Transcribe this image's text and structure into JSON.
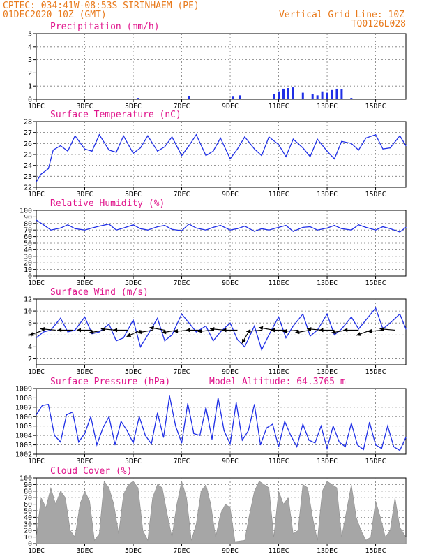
{
  "header": {
    "line1": "CPTEC:  034:41W-08:53S  SIRINHAEM (PE)",
    "line2_left": "01DEC2020 10Z (GMT)",
    "line2_right": "Vertical Grid Line: 10Z",
    "line3_right": "TQ0126L028"
  },
  "colors": {
    "header": "#e87a1c",
    "panel_title": "#e0168c",
    "series_line": "#1f2fe6",
    "cloud_fill": "#a6a6a6",
    "wind_arrow": "#000000"
  },
  "x_ticks": [
    "1DEC",
    "3DEC",
    "5DEC",
    "7DEC",
    "9DEC",
    "11DEC",
    "13DEC",
    "15DEC"
  ],
  "chart_data": [
    {
      "type": "bar",
      "title": "Precipitation (mm/h)",
      "x_range_days": [
        1,
        16.25
      ],
      "ylim": [
        0,
        5
      ],
      "yticks": [
        0,
        1,
        2,
        3,
        4,
        5
      ],
      "grid": true,
      "x": [
        1.5,
        2.0,
        5.2,
        7.3,
        9.1,
        9.4,
        10.8,
        11.0,
        11.2,
        11.4,
        11.6,
        12.0,
        12.4,
        12.6,
        12.8,
        13.0,
        13.2,
        13.4,
        13.6,
        14.0
      ],
      "values": [
        0.05,
        0.05,
        0.1,
        0.25,
        0.2,
        0.3,
        0.4,
        0.6,
        0.8,
        0.85,
        0.9,
        0.5,
        0.4,
        0.3,
        0.6,
        0.5,
        0.7,
        0.8,
        0.75,
        0.1
      ]
    },
    {
      "type": "line",
      "title": "Surface Temperature (nC)",
      "x_range_days": [
        1,
        16.25
      ],
      "ylim": [
        22,
        28
      ],
      "yticks": [
        22,
        23,
        24,
        25,
        26,
        27,
        28
      ],
      "grid": true,
      "x": [
        1.0,
        1.2,
        1.5,
        1.7,
        2.0,
        2.3,
        2.6,
        3.0,
        3.3,
        3.6,
        4.0,
        4.3,
        4.6,
        5.0,
        5.3,
        5.6,
        6.0,
        6.3,
        6.6,
        7.0,
        7.3,
        7.6,
        8.0,
        8.3,
        8.6,
        9.0,
        9.3,
        9.6,
        10.0,
        10.3,
        10.6,
        11.0,
        11.3,
        11.6,
        12.0,
        12.3,
        12.6,
        13.0,
        13.3,
        13.6,
        14.0,
        14.3,
        14.6,
        15.0,
        15.3,
        15.6,
        16.0,
        16.25
      ],
      "values": [
        22.5,
        23.2,
        23.7,
        25.4,
        25.8,
        25.3,
        26.7,
        25.5,
        25.3,
        26.8,
        25.4,
        25.2,
        26.7,
        25.1,
        25.6,
        26.7,
        25.3,
        25.7,
        26.6,
        24.9,
        25.8,
        26.8,
        24.9,
        25.3,
        26.5,
        24.6,
        25.5,
        26.6,
        25.5,
        24.9,
        26.6,
        25.9,
        24.8,
        26.4,
        25.6,
        24.8,
        26.4,
        25.3,
        24.6,
        26.2,
        26.0,
        25.4,
        26.5,
        26.8,
        25.5,
        25.6,
        26.7,
        25.8
      ]
    },
    {
      "type": "line",
      "title": "Relative Humidity (%)",
      "x_range_days": [
        1,
        16.25
      ],
      "ylim": [
        0,
        100
      ],
      "yticks": [
        0,
        10,
        20,
        30,
        40,
        50,
        60,
        70,
        80,
        90,
        100
      ],
      "grid": true,
      "x": [
        1.0,
        1.3,
        1.6,
        2.0,
        2.3,
        2.6,
        3.0,
        3.3,
        3.6,
        4.0,
        4.3,
        4.6,
        5.0,
        5.3,
        5.6,
        6.0,
        6.3,
        6.6,
        7.0,
        7.3,
        7.6,
        8.0,
        8.3,
        8.6,
        9.0,
        9.3,
        9.6,
        10.0,
        10.3,
        10.6,
        11.0,
        11.3,
        11.6,
        12.0,
        12.3,
        12.6,
        13.0,
        13.3,
        13.6,
        14.0,
        14.3,
        14.6,
        15.0,
        15.3,
        15.6,
        16.0,
        16.25
      ],
      "values": [
        85,
        78,
        70,
        73,
        78,
        72,
        70,
        73,
        76,
        79,
        70,
        73,
        78,
        72,
        70,
        75,
        77,
        71,
        69,
        79,
        73,
        70,
        74,
        77,
        70,
        72,
        76,
        68,
        72,
        70,
        74,
        77,
        68,
        74,
        75,
        70,
        73,
        77,
        72,
        70,
        78,
        74,
        70,
        75,
        72,
        67,
        74
      ]
    },
    {
      "type": "line",
      "title": "Surface Wind (m/s)",
      "x_range_days": [
        1,
        16.25
      ],
      "ylim": [
        1,
        12
      ],
      "yticks": [
        2,
        4,
        6,
        8,
        10,
        12
      ],
      "grid": true,
      "x": [
        1.0,
        1.3,
        1.6,
        2.0,
        2.3,
        2.6,
        3.0,
        3.3,
        3.6,
        4.0,
        4.3,
        4.6,
        5.0,
        5.3,
        5.6,
        6.0,
        6.3,
        6.6,
        7.0,
        7.3,
        7.6,
        8.0,
        8.3,
        8.6,
        9.0,
        9.3,
        9.6,
        10.0,
        10.3,
        10.6,
        11.0,
        11.3,
        11.6,
        12.0,
        12.3,
        12.6,
        13.0,
        13.3,
        13.6,
        14.0,
        14.3,
        14.6,
        15.0,
        15.3,
        15.6,
        16.0,
        16.25
      ],
      "values": [
        5.5,
        6.5,
        6.8,
        8.8,
        6.5,
        6.8,
        9.0,
        6.2,
        6.5,
        7.8,
        5.0,
        5.5,
        8.5,
        4.0,
        6.0,
        8.8,
        5.0,
        6.0,
        9.5,
        8.0,
        6.5,
        7.5,
        5.0,
        6.5,
        8.0,
        5.2,
        4.0,
        7.5,
        3.5,
        6.0,
        9.0,
        5.5,
        7.5,
        9.5,
        5.8,
        6.8,
        9.5,
        6.0,
        7.0,
        9.0,
        7.0,
        8.5,
        10.5,
        7.0,
        8.0,
        9.5,
        7.0
      ],
      "arrows_x": [
        1.3,
        1.8,
        2.5,
        3.3,
        3.8,
        4.3,
        4.8,
        5.3,
        5.8,
        6.3,
        6.8,
        7.3,
        7.8,
        8.3,
        8.8,
        9.3,
        9.8,
        10.3,
        10.8,
        11.3,
        11.8,
        12.3,
        12.8,
        13.3,
        13.8,
        14.3,
        14.8,
        15.3,
        15.8
      ],
      "arrows_dir_deg": [
        200,
        175,
        180,
        180,
        190,
        175,
        180,
        205,
        190,
        170,
        190,
        185,
        180,
        185,
        175,
        180,
        240,
        185,
        170,
        180,
        185,
        190,
        175,
        180,
        190,
        180,
        200,
        185,
        175
      ]
    },
    {
      "type": "line",
      "title": "Surface Pressure (hPa)",
      "subtitle": "Model Altitude: 64.3765 m",
      "x_range_days": [
        1,
        16.25
      ],
      "ylim": [
        1002,
        1009
      ],
      "yticks": [
        1002,
        1003,
        1004,
        1005,
        1006,
        1007,
        1008,
        1009
      ],
      "grid": true,
      "x": [
        1.0,
        1.25,
        1.5,
        1.75,
        2.0,
        2.25,
        2.5,
        2.75,
        3.0,
        3.25,
        3.5,
        3.75,
        4.0,
        4.25,
        4.5,
        4.75,
        5.0,
        5.25,
        5.5,
        5.75,
        6.0,
        6.25,
        6.5,
        6.75,
        7.0,
        7.25,
        7.5,
        7.75,
        8.0,
        8.25,
        8.5,
        8.75,
        9.0,
        9.25,
        9.5,
        9.75,
        10.0,
        10.25,
        10.5,
        10.75,
        11.0,
        11.25,
        11.5,
        11.75,
        12.0,
        12.25,
        12.5,
        12.75,
        13.0,
        13.25,
        13.5,
        13.75,
        14.0,
        14.25,
        14.5,
        14.75,
        15.0,
        15.25,
        15.5,
        15.75,
        16.0,
        16.25
      ],
      "values": [
        1006.2,
        1007.2,
        1007.3,
        1004.0,
        1003.3,
        1006.2,
        1006.5,
        1003.3,
        1004.2,
        1006.0,
        1003.0,
        1004.8,
        1006.0,
        1003.0,
        1005.5,
        1004.5,
        1003.2,
        1006.0,
        1004.0,
        1003.1,
        1006.4,
        1003.8,
        1008.2,
        1005.0,
        1003.2,
        1007.4,
        1004.2,
        1004.0,
        1007.0,
        1003.6,
        1008.0,
        1004.5,
        1003.1,
        1007.5,
        1003.5,
        1004.5,
        1007.3,
        1003.0,
        1004.8,
        1005.2,
        1002.8,
        1005.5,
        1004.0,
        1002.8,
        1005.2,
        1003.5,
        1003.2,
        1005.0,
        1002.6,
        1005.0,
        1003.3,
        1002.8,
        1005.3,
        1003.0,
        1002.5,
        1005.4,
        1003.0,
        1002.6,
        1005.0,
        1002.8,
        1002.4,
        1003.8
      ]
    },
    {
      "type": "area",
      "title": "Cloud Cover (%)",
      "x_range_days": [
        1,
        16.25
      ],
      "ylim": [
        0,
        100
      ],
      "yticks": [
        0,
        10,
        20,
        30,
        40,
        50,
        60,
        70,
        80,
        90,
        100
      ],
      "grid": true,
      "x": [
        1.0,
        1.2,
        1.4,
        1.6,
        1.8,
        2.0,
        2.2,
        2.4,
        2.6,
        2.8,
        3.0,
        3.2,
        3.4,
        3.6,
        3.8,
        4.0,
        4.2,
        4.4,
        4.6,
        4.8,
        5.0,
        5.2,
        5.4,
        5.6,
        5.8,
        6.0,
        6.2,
        6.4,
        6.6,
        6.8,
        7.0,
        7.2,
        7.4,
        7.6,
        7.8,
        8.0,
        8.2,
        8.4,
        8.6,
        8.8,
        9.0,
        9.2,
        9.4,
        9.6,
        9.8,
        10.0,
        10.2,
        10.4,
        10.6,
        10.8,
        11.0,
        11.2,
        11.4,
        11.6,
        11.8,
        12.0,
        12.2,
        12.4,
        12.6,
        12.8,
        13.0,
        13.2,
        13.4,
        13.6,
        13.8,
        14.0,
        14.2,
        14.4,
        14.6,
        14.8,
        15.0,
        15.2,
        15.4,
        15.6,
        15.8,
        16.0,
        16.25
      ],
      "values": [
        10,
        70,
        55,
        85,
        60,
        80,
        70,
        20,
        10,
        60,
        80,
        65,
        5,
        15,
        95,
        85,
        60,
        15,
        75,
        90,
        95,
        85,
        20,
        5,
        70,
        90,
        85,
        45,
        10,
        60,
        95,
        70,
        5,
        30,
        80,
        90,
        60,
        10,
        45,
        60,
        55,
        3,
        4,
        5,
        45,
        80,
        95,
        90,
        85,
        10,
        80,
        60,
        70,
        15,
        20,
        90,
        85,
        40,
        5,
        80,
        95,
        90,
        85,
        10,
        50,
        90,
        40,
        20,
        5,
        10,
        65,
        40,
        10,
        20,
        70,
        25,
        10
      ]
    }
  ]
}
